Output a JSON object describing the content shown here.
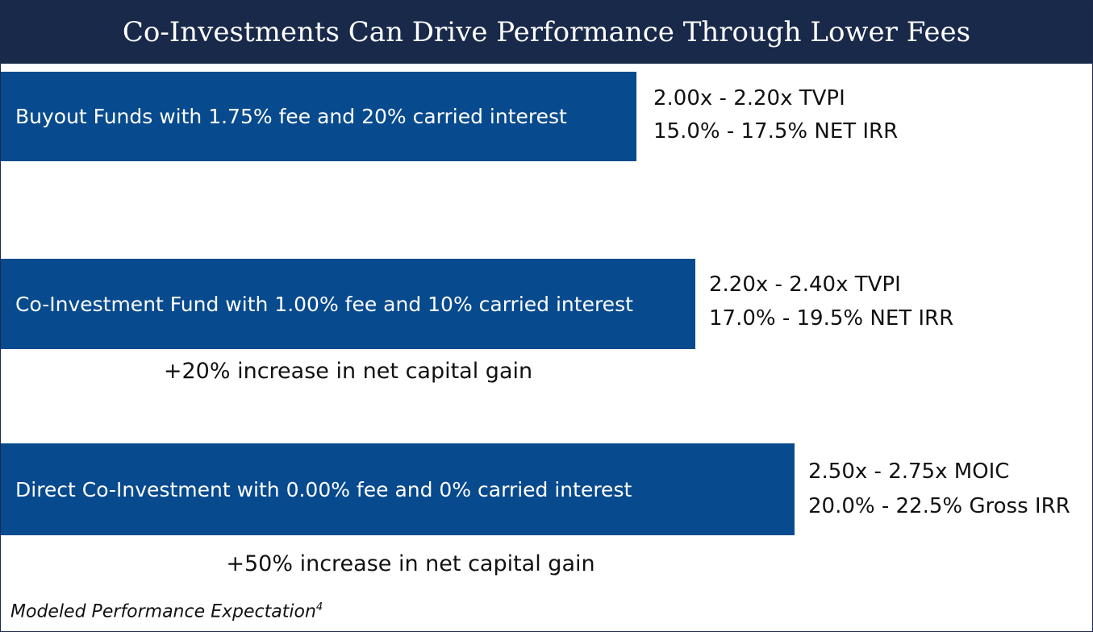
{
  "header": {
    "title": "Co-Investments Can Drive Performance Through Lower Fees"
  },
  "rows": [
    {
      "label": "Buyout Funds with 1.75% fee and 20% carried interest",
      "metrics": [
        "2.00x - 2.20x TVPI",
        "15.0% - 17.5% NET IRR"
      ]
    },
    {
      "label": "Co-Investment Fund with 1.00% fee and 10% carried interest",
      "metrics": [
        "2.20x - 2.40x TVPI",
        "17.0% - 19.5% NET IRR"
      ],
      "note": "+20% increase in net capital gain"
    },
    {
      "label": "Direct Co-Investment with 0.00% fee and 0% carried interest",
      "metrics": [
        "2.50x - 2.75x MOIC",
        "20.0% - 22.5% Gross IRR"
      ],
      "note": "+50% increase in net capital gain"
    }
  ],
  "footnote": {
    "text": "Modeled Performance Expectation",
    "marker": "4"
  }
}
